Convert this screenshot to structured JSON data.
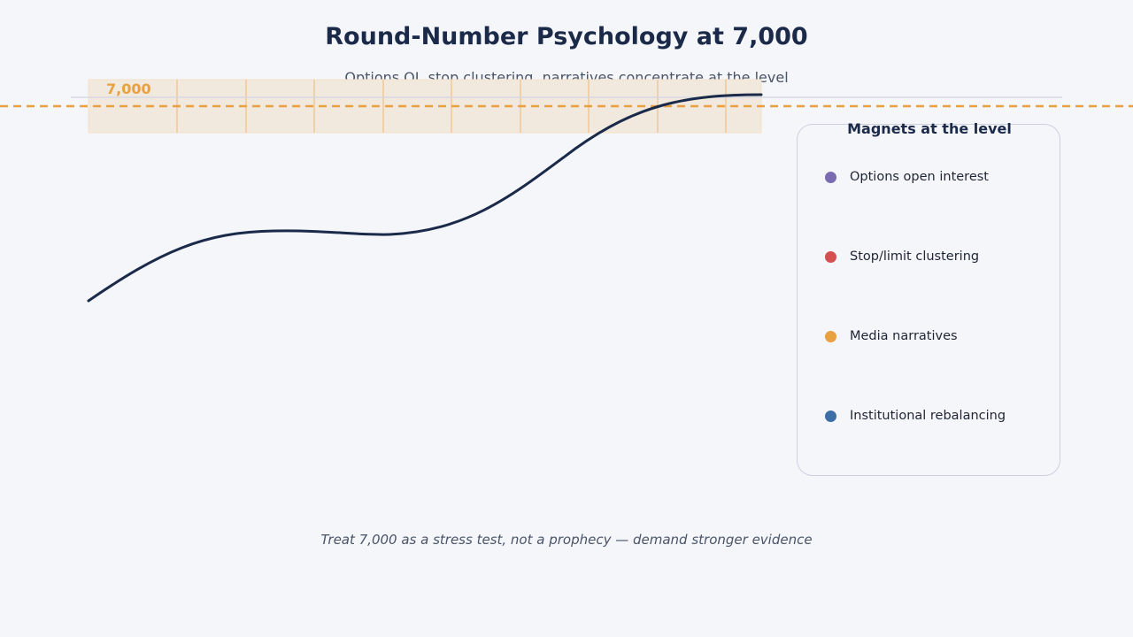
{
  "title": "Round-Number Psychology at 7,000",
  "subtitle": "Options OI, stop clustering, narratives concentrate at the level",
  "level": {
    "label": "7,000",
    "color": "#e8a040"
  },
  "curve_color": "#1c2a4a",
  "legend": {
    "title": "Magnets at the level",
    "items": [
      {
        "label": "Options open interest",
        "color": "#7b6bb0"
      },
      {
        "label": "Stop/limit clustering",
        "color": "#d44f4f"
      },
      {
        "label": "Media narratives",
        "color": "#e8a040"
      },
      {
        "label": "Institutional rebalancing",
        "color": "#3c6ea8"
      }
    ]
  },
  "footnote": "Treat 7,000 as a stress test, not a prophecy — demand stronger evidence"
}
